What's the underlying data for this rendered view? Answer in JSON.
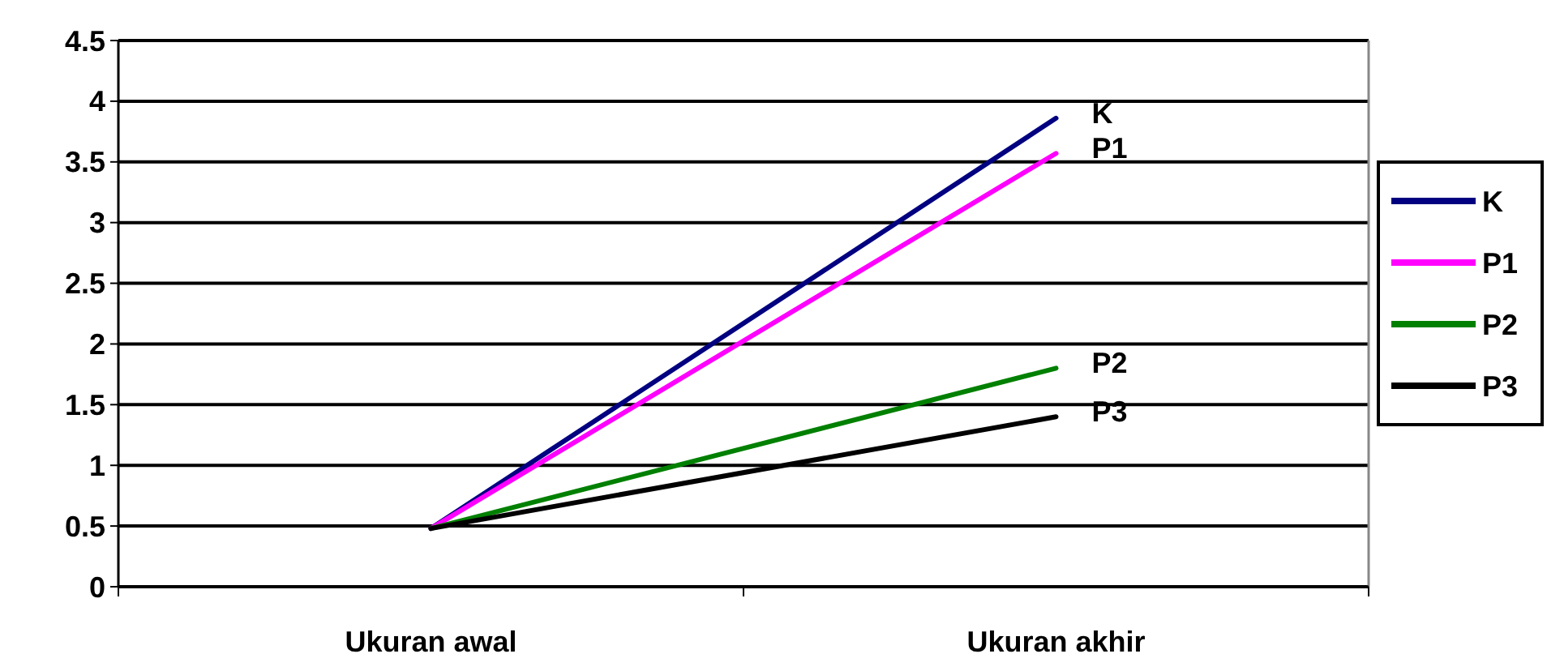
{
  "chart_data": {
    "type": "line",
    "categories": [
      "Ukuran awal",
      "Ukuran akhir"
    ],
    "series": [
      {
        "name": "K",
        "color": "#000080",
        "values": [
          0.48,
          3.86
        ]
      },
      {
        "name": "P1",
        "color": "#ff00ff",
        "values": [
          0.48,
          3.57
        ]
      },
      {
        "name": "P2",
        "color": "#008000",
        "values": [
          0.48,
          1.8
        ]
      },
      {
        "name": "P3",
        "color": "#000000",
        "values": [
          0.48,
          1.4
        ]
      }
    ],
    "ylim": [
      0,
      4.5
    ],
    "yticks": [
      0,
      0.5,
      1,
      1.5,
      2,
      2.5,
      3,
      3.5,
      4,
      4.5
    ],
    "grid": "y",
    "legend": "right",
    "marker": "none",
    "line_style": "solid"
  }
}
